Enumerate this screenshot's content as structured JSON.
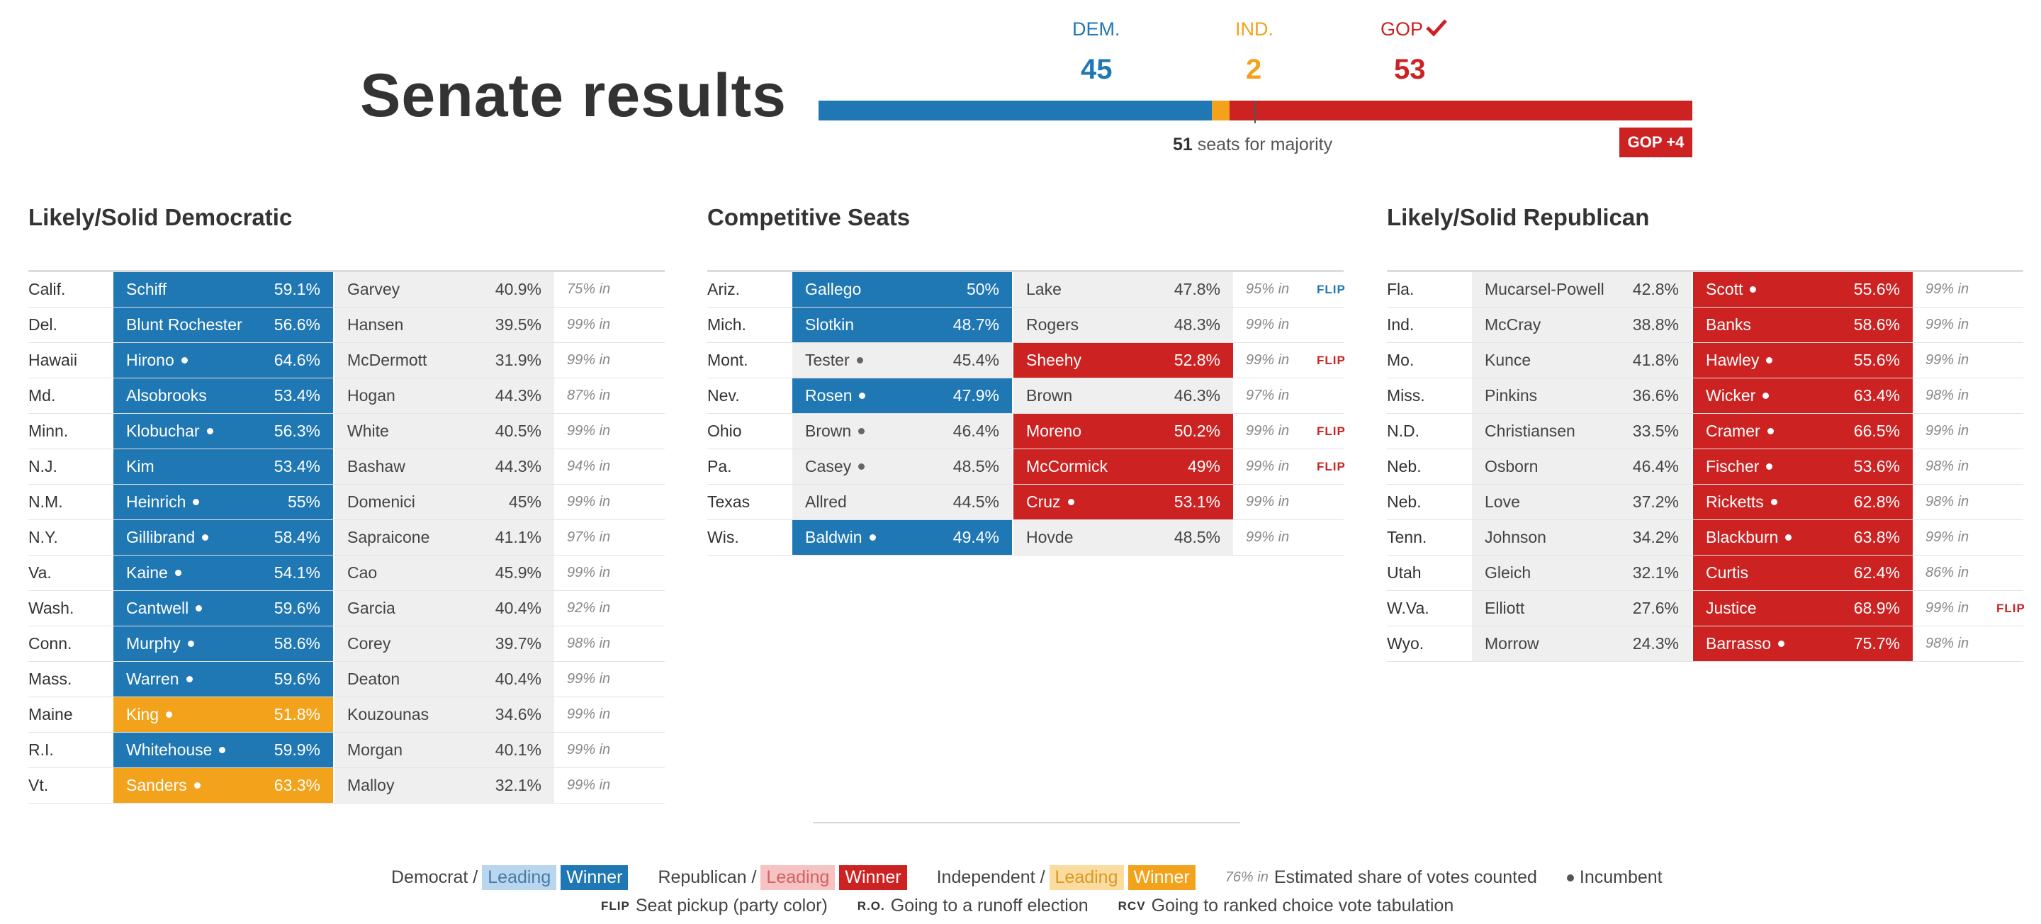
{
  "header": {
    "title": "Senate results",
    "dem_label": "DEM.",
    "ind_label": "IND.",
    "gop_label": "GOP",
    "dem_seats": "45",
    "ind_seats": "2",
    "gop_seats": "53",
    "bar": {
      "dem": 45,
      "ind": 2,
      "gop": 53,
      "total": 100
    },
    "majority_number": "51",
    "majority_text": " seats for majority",
    "gain_badge": "GOP +4"
  },
  "colors": {
    "dem": "#1f77b4",
    "rep": "#cc2222",
    "ind": "#f3a21b"
  },
  "sections": [
    {
      "title": "Likely/Solid Democratic",
      "rows": [
        {
          "state": "Calif.",
          "c1": {
            "name": "Schiff",
            "pct": "59.1%",
            "style": "win-dem",
            "inc": false
          },
          "c2": {
            "name": "Garvey",
            "pct": "40.9%",
            "style": "lose",
            "inc": false
          },
          "pct_in": "75% in",
          "flip": ""
        },
        {
          "state": "Del.",
          "c1": {
            "name": "Blunt Rochester",
            "pct": "56.6%",
            "style": "win-dem",
            "inc": false
          },
          "c2": {
            "name": "Hansen",
            "pct": "39.5%",
            "style": "lose",
            "inc": false
          },
          "pct_in": "99% in",
          "flip": ""
        },
        {
          "state": "Hawaii",
          "c1": {
            "name": "Hirono",
            "pct": "64.6%",
            "style": "win-dem",
            "inc": true
          },
          "c2": {
            "name": "McDermott",
            "pct": "31.9%",
            "style": "lose",
            "inc": false
          },
          "pct_in": "99% in",
          "flip": ""
        },
        {
          "state": "Md.",
          "c1": {
            "name": "Alsobrooks",
            "pct": "53.4%",
            "style": "win-dem",
            "inc": false
          },
          "c2": {
            "name": "Hogan",
            "pct": "44.3%",
            "style": "lose",
            "inc": false
          },
          "pct_in": "87% in",
          "flip": ""
        },
        {
          "state": "Minn.",
          "c1": {
            "name": "Klobuchar",
            "pct": "56.3%",
            "style": "win-dem",
            "inc": true
          },
          "c2": {
            "name": "White",
            "pct": "40.5%",
            "style": "lose",
            "inc": false
          },
          "pct_in": "99% in",
          "flip": ""
        },
        {
          "state": "N.J.",
          "c1": {
            "name": "Kim",
            "pct": "53.4%",
            "style": "win-dem",
            "inc": false
          },
          "c2": {
            "name": "Bashaw",
            "pct": "44.3%",
            "style": "lose",
            "inc": false
          },
          "pct_in": "94% in",
          "flip": ""
        },
        {
          "state": "N.M.",
          "c1": {
            "name": "Heinrich",
            "pct": "55%",
            "style": "win-dem",
            "inc": true
          },
          "c2": {
            "name": "Domenici",
            "pct": "45%",
            "style": "lose",
            "inc": false
          },
          "pct_in": "99% in",
          "flip": ""
        },
        {
          "state": "N.Y.",
          "c1": {
            "name": "Gillibrand",
            "pct": "58.4%",
            "style": "win-dem",
            "inc": true
          },
          "c2": {
            "name": "Sapraicone",
            "pct": "41.1%",
            "style": "lose",
            "inc": false
          },
          "pct_in": "97% in",
          "flip": ""
        },
        {
          "state": "Va.",
          "c1": {
            "name": "Kaine",
            "pct": "54.1%",
            "style": "win-dem",
            "inc": true
          },
          "c2": {
            "name": "Cao",
            "pct": "45.9%",
            "style": "lose",
            "inc": false
          },
          "pct_in": "99% in",
          "flip": ""
        },
        {
          "state": "Wash.",
          "c1": {
            "name": "Cantwell",
            "pct": "59.6%",
            "style": "win-dem",
            "inc": true
          },
          "c2": {
            "name": "Garcia",
            "pct": "40.4%",
            "style": "lose",
            "inc": false
          },
          "pct_in": "92% in",
          "flip": ""
        },
        {
          "state": "Conn.",
          "c1": {
            "name": "Murphy",
            "pct": "58.6%",
            "style": "win-dem",
            "inc": true
          },
          "c2": {
            "name": "Corey",
            "pct": "39.7%",
            "style": "lose",
            "inc": false
          },
          "pct_in": "98% in",
          "flip": ""
        },
        {
          "state": "Mass.",
          "c1": {
            "name": "Warren",
            "pct": "59.6%",
            "style": "win-dem",
            "inc": true
          },
          "c2": {
            "name": "Deaton",
            "pct": "40.4%",
            "style": "lose",
            "inc": false
          },
          "pct_in": "99% in",
          "flip": ""
        },
        {
          "state": "Maine",
          "c1": {
            "name": "King",
            "pct": "51.8%",
            "style": "win-ind",
            "inc": true
          },
          "c2": {
            "name": "Kouzounas",
            "pct": "34.6%",
            "style": "lose",
            "inc": false
          },
          "pct_in": "99% in",
          "flip": ""
        },
        {
          "state": "R.I.",
          "c1": {
            "name": "Whitehouse",
            "pct": "59.9%",
            "style": "win-dem",
            "inc": true
          },
          "c2": {
            "name": "Morgan",
            "pct": "40.1%",
            "style": "lose",
            "inc": false
          },
          "pct_in": "99% in",
          "flip": ""
        },
        {
          "state": "Vt.",
          "c1": {
            "name": "Sanders",
            "pct": "63.3%",
            "style": "win-ind",
            "inc": true
          },
          "c2": {
            "name": "Malloy",
            "pct": "32.1%",
            "style": "lose",
            "inc": false
          },
          "pct_in": "99% in",
          "flip": ""
        }
      ]
    },
    {
      "title": "Competitive Seats",
      "rows": [
        {
          "state": "Ariz.",
          "c1": {
            "name": "Gallego",
            "pct": "50%",
            "style": "win-dem",
            "inc": false
          },
          "c2": {
            "name": "Lake",
            "pct": "47.8%",
            "style": "lose",
            "inc": false
          },
          "pct_in": "95% in",
          "flip": "FLIP",
          "flip_party": "dem"
        },
        {
          "state": "Mich.",
          "c1": {
            "name": "Slotkin",
            "pct": "48.7%",
            "style": "win-dem",
            "inc": false
          },
          "c2": {
            "name": "Rogers",
            "pct": "48.3%",
            "style": "lose",
            "inc": false
          },
          "pct_in": "99% in",
          "flip": ""
        },
        {
          "state": "Mont.",
          "c1": {
            "name": "Tester",
            "pct": "45.4%",
            "style": "lose",
            "inc": true
          },
          "c2": {
            "name": "Sheehy",
            "pct": "52.8%",
            "style": "win-rep",
            "inc": false
          },
          "pct_in": "99% in",
          "flip": "FLIP",
          "flip_party": "rep"
        },
        {
          "state": "Nev.",
          "c1": {
            "name": "Rosen",
            "pct": "47.9%",
            "style": "win-dem",
            "inc": true
          },
          "c2": {
            "name": "Brown",
            "pct": "46.3%",
            "style": "lose",
            "inc": false
          },
          "pct_in": "97% in",
          "flip": ""
        },
        {
          "state": "Ohio",
          "c1": {
            "name": "Brown",
            "pct": "46.4%",
            "style": "lose",
            "inc": true
          },
          "c2": {
            "name": "Moreno",
            "pct": "50.2%",
            "style": "win-rep",
            "inc": false
          },
          "pct_in": "99% in",
          "flip": "FLIP",
          "flip_party": "rep"
        },
        {
          "state": "Pa.",
          "c1": {
            "name": "Casey",
            "pct": "48.5%",
            "style": "lose",
            "inc": true
          },
          "c2": {
            "name": "McCormick",
            "pct": "49%",
            "style": "win-rep",
            "inc": false
          },
          "pct_in": "99% in",
          "flip": "FLIP",
          "flip_party": "rep"
        },
        {
          "state": "Texas",
          "c1": {
            "name": "Allred",
            "pct": "44.5%",
            "style": "lose",
            "inc": false
          },
          "c2": {
            "name": "Cruz",
            "pct": "53.1%",
            "style": "win-rep",
            "inc": true
          },
          "pct_in": "99% in",
          "flip": ""
        },
        {
          "state": "Wis.",
          "c1": {
            "name": "Baldwin",
            "pct": "49.4%",
            "style": "win-dem",
            "inc": true
          },
          "c2": {
            "name": "Hovde",
            "pct": "48.5%",
            "style": "lose",
            "inc": false
          },
          "pct_in": "99% in",
          "flip": ""
        }
      ]
    },
    {
      "title": "Likely/Solid Republican",
      "rows": [
        {
          "state": "Fla.",
          "c1": {
            "name": "Mucarsel-Powell",
            "pct": "42.8%",
            "style": "lose",
            "inc": false
          },
          "c2": {
            "name": "Scott",
            "pct": "55.6%",
            "style": "win-rep",
            "inc": true
          },
          "pct_in": "99% in",
          "flip": ""
        },
        {
          "state": "Ind.",
          "c1": {
            "name": "McCray",
            "pct": "38.8%",
            "style": "lose",
            "inc": false
          },
          "c2": {
            "name": "Banks",
            "pct": "58.6%",
            "style": "win-rep",
            "inc": false
          },
          "pct_in": "99% in",
          "flip": ""
        },
        {
          "state": "Mo.",
          "c1": {
            "name": "Kunce",
            "pct": "41.8%",
            "style": "lose",
            "inc": false
          },
          "c2": {
            "name": "Hawley",
            "pct": "55.6%",
            "style": "win-rep",
            "inc": true
          },
          "pct_in": "99% in",
          "flip": ""
        },
        {
          "state": "Miss.",
          "c1": {
            "name": "Pinkins",
            "pct": "36.6%",
            "style": "lose",
            "inc": false
          },
          "c2": {
            "name": "Wicker",
            "pct": "63.4%",
            "style": "win-rep",
            "inc": true
          },
          "pct_in": "98% in",
          "flip": ""
        },
        {
          "state": "N.D.",
          "c1": {
            "name": "Christiansen",
            "pct": "33.5%",
            "style": "lose",
            "inc": false
          },
          "c2": {
            "name": "Cramer",
            "pct": "66.5%",
            "style": "win-rep",
            "inc": true
          },
          "pct_in": "99% in",
          "flip": ""
        },
        {
          "state": "Neb.",
          "c1": {
            "name": "Osborn",
            "pct": "46.4%",
            "style": "lose",
            "inc": false
          },
          "c2": {
            "name": "Fischer",
            "pct": "53.6%",
            "style": "win-rep",
            "inc": true
          },
          "pct_in": "98% in",
          "flip": ""
        },
        {
          "state": "Neb.",
          "c1": {
            "name": "Love",
            "pct": "37.2%",
            "style": "lose",
            "inc": false
          },
          "c2": {
            "name": "Ricketts",
            "pct": "62.8%",
            "style": "win-rep",
            "inc": true
          },
          "pct_in": "98% in",
          "flip": ""
        },
        {
          "state": "Tenn.",
          "c1": {
            "name": "Johnson",
            "pct": "34.2%",
            "style": "lose",
            "inc": false
          },
          "c2": {
            "name": "Blackburn",
            "pct": "63.8%",
            "style": "win-rep",
            "inc": true
          },
          "pct_in": "99% in",
          "flip": ""
        },
        {
          "state": "Utah",
          "c1": {
            "name": "Gleich",
            "pct": "32.1%",
            "style": "lose",
            "inc": false
          },
          "c2": {
            "name": "Curtis",
            "pct": "62.4%",
            "style": "win-rep",
            "inc": false
          },
          "pct_in": "86% in",
          "flip": ""
        },
        {
          "state": "W.Va.",
          "c1": {
            "name": "Elliott",
            "pct": "27.6%",
            "style": "lose",
            "inc": false
          },
          "c2": {
            "name": "Justice",
            "pct": "68.9%",
            "style": "win-rep",
            "inc": false
          },
          "pct_in": "99% in",
          "flip": "FLIP",
          "flip_party": "rep"
        },
        {
          "state": "Wyo.",
          "c1": {
            "name": "Morrow",
            "pct": "24.3%",
            "style": "lose",
            "inc": false
          },
          "c2": {
            "name": "Barrasso",
            "pct": "75.7%",
            "style": "win-rep",
            "inc": true
          },
          "pct_in": "98% in",
          "flip": ""
        }
      ]
    }
  ],
  "legend": {
    "democrat": "Democrat /",
    "republican": "Republican /",
    "independent": "Independent /",
    "leading": "Leading",
    "winner": "Winner",
    "pct_example": "76% in",
    "pct_text": "Estimated share of votes counted",
    "incumbent": "Incumbent",
    "flip_abbr": "FLIP",
    "flip_text": "Seat pickup (party color)",
    "ro_abbr": "R.O.",
    "ro_text": "Going to a runoff election",
    "rcv_abbr": "RCV",
    "rcv_text": "Going to ranked choice vote tabulation"
  }
}
